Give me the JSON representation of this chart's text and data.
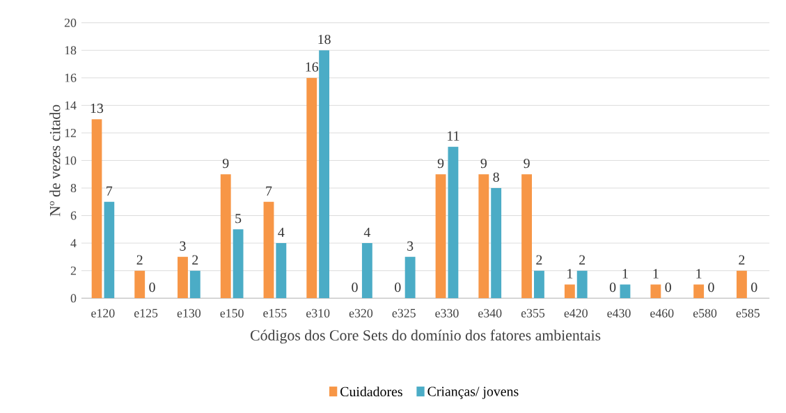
{
  "chart_data": {
    "type": "bar",
    "xlabel": "Códigos dos Core Sets do domínio dos fatores ambientais",
    "ylabel": "Nº de vezes citado",
    "categories": [
      "e120",
      "e125",
      "e130",
      "e150",
      "e155",
      "e310",
      "e320",
      "e325",
      "e330",
      "e340",
      "e355",
      "e420",
      "e430",
      "e460",
      "e580",
      "e585"
    ],
    "series": [
      {
        "name": "Cuidadores",
        "color": "#f79646",
        "values": [
          13,
          2,
          3,
          9,
          7,
          16,
          0,
          0,
          9,
          9,
          9,
          1,
          0,
          1,
          1,
          2
        ]
      },
      {
        "name": "Crianças/ jovens",
        "color": "#4bacc6",
        "values": [
          7,
          0,
          2,
          5,
          4,
          18,
          4,
          3,
          11,
          8,
          2,
          2,
          1,
          0,
          0,
          0
        ]
      }
    ],
    "ylim": [
      0,
      20
    ],
    "yticks": [
      0,
      2,
      4,
      6,
      8,
      10,
      12,
      14,
      16,
      18,
      20
    ],
    "grid": "y",
    "legend": "bottom",
    "data_labels": true
  }
}
